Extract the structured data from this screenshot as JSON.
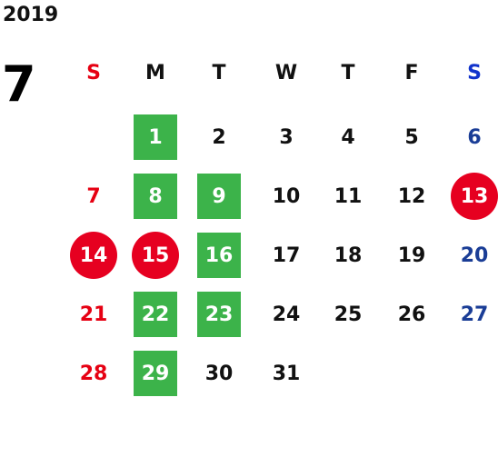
{
  "year": "2019",
  "month": "7",
  "weekdays": [
    "S",
    "M",
    "T",
    "W",
    "T",
    "F",
    "S"
  ],
  "colors": {
    "sunday": "#e60012",
    "saturday": "#1a3d96",
    "weekday": "#111111",
    "green_highlight": "#3cb34a",
    "red_highlight": "#e60020",
    "sunday_header": "#e60012",
    "saturday_header": "#1133cc"
  },
  "days": [
    {
      "day": "1",
      "col": 1,
      "row": 0,
      "mark": "green"
    },
    {
      "day": "2",
      "col": 2,
      "row": 0,
      "mark": "none"
    },
    {
      "day": "3",
      "col": 3,
      "row": 0,
      "mark": "none"
    },
    {
      "day": "4",
      "col": 4,
      "row": 0,
      "mark": "none"
    },
    {
      "day": "5",
      "col": 5,
      "row": 0,
      "mark": "none"
    },
    {
      "day": "6",
      "col": 6,
      "row": 0,
      "mark": "none"
    },
    {
      "day": "7",
      "col": 0,
      "row": 1,
      "mark": "none"
    },
    {
      "day": "8",
      "col": 1,
      "row": 1,
      "mark": "green"
    },
    {
      "day": "9",
      "col": 2,
      "row": 1,
      "mark": "green"
    },
    {
      "day": "10",
      "col": 3,
      "row": 1,
      "mark": "none"
    },
    {
      "day": "11",
      "col": 4,
      "row": 1,
      "mark": "none"
    },
    {
      "day": "12",
      "col": 5,
      "row": 1,
      "mark": "none"
    },
    {
      "day": "13",
      "col": 6,
      "row": 1,
      "mark": "red-circle"
    },
    {
      "day": "14",
      "col": 0,
      "row": 2,
      "mark": "red-circle"
    },
    {
      "day": "15",
      "col": 1,
      "row": 2,
      "mark": "red-circle"
    },
    {
      "day": "16",
      "col": 2,
      "row": 2,
      "mark": "green"
    },
    {
      "day": "17",
      "col": 3,
      "row": 2,
      "mark": "none"
    },
    {
      "day": "18",
      "col": 4,
      "row": 2,
      "mark": "none"
    },
    {
      "day": "19",
      "col": 5,
      "row": 2,
      "mark": "none"
    },
    {
      "day": "20",
      "col": 6,
      "row": 2,
      "mark": "none"
    },
    {
      "day": "21",
      "col": 0,
      "row": 3,
      "mark": "none"
    },
    {
      "day": "22",
      "col": 1,
      "row": 3,
      "mark": "green"
    },
    {
      "day": "23",
      "col": 2,
      "row": 3,
      "mark": "green"
    },
    {
      "day": "24",
      "col": 3,
      "row": 3,
      "mark": "none"
    },
    {
      "day": "25",
      "col": 4,
      "row": 3,
      "mark": "none"
    },
    {
      "day": "26",
      "col": 5,
      "row": 3,
      "mark": "none"
    },
    {
      "day": "27",
      "col": 6,
      "row": 3,
      "mark": "none"
    },
    {
      "day": "28",
      "col": 0,
      "row": 4,
      "mark": "none"
    },
    {
      "day": "29",
      "col": 1,
      "row": 4,
      "mark": "green"
    },
    {
      "day": "30",
      "col": 2,
      "row": 4,
      "mark": "none"
    },
    {
      "day": "31",
      "col": 3,
      "row": 4,
      "mark": "none"
    }
  ]
}
